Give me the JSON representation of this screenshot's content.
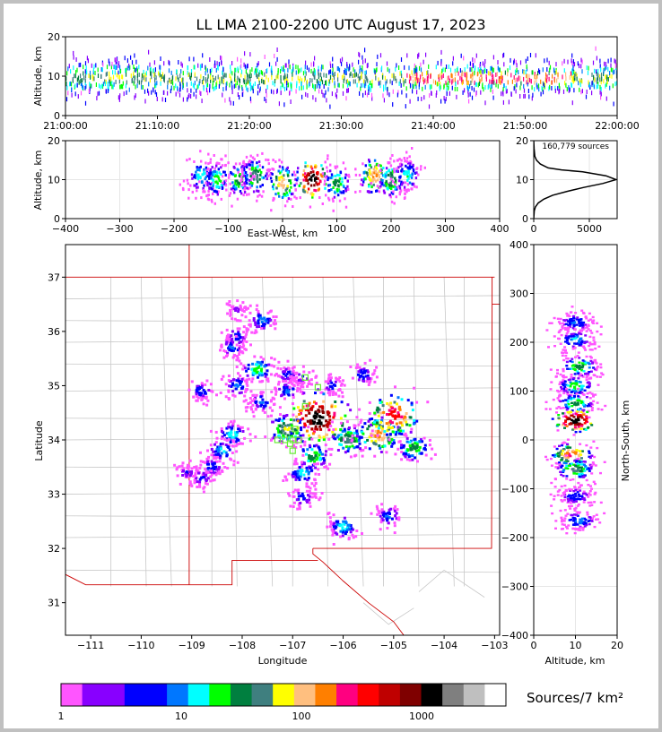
{
  "title": "LL LMA 2100-2200 UTC August 17, 2023",
  "panels": {
    "time_altitude": {
      "ylabel": "Altitude, km",
      "x_ticks": [
        "21:00:00",
        "21:10:00",
        "21:20:00",
        "21:30:00",
        "21:40:00",
        "21:50:00",
        "22:00:00"
      ],
      "y_ticks": [
        "0",
        "10",
        "20"
      ],
      "xlim_minutes": [
        0,
        60
      ],
      "ylim": [
        0,
        20
      ]
    },
    "ew_altitude": {
      "ylabel": "Altitude, km",
      "xlabel": "East-West, km",
      "x_ticks": [
        "−400",
        "−300",
        "−200",
        "−100",
        "0",
        "100",
        "200",
        "300",
        "400"
      ],
      "y_ticks": [
        "0",
        "10",
        "20"
      ],
      "xlim": [
        -400,
        400
      ],
      "ylim": [
        0,
        20
      ]
    },
    "histogram": {
      "annotation": "160,779 sources",
      "x_ticks": [
        "0",
        "5000"
      ],
      "y_ticks": [
        "0",
        "10",
        "20"
      ],
      "xlim": [
        0,
        7500
      ],
      "ylim": [
        0,
        20
      ]
    },
    "plan_view": {
      "xlabel": "Longitude",
      "ylabel": "Latitude",
      "x_ticks": [
        "−111",
        "−110",
        "−109",
        "−108",
        "−107",
        "−106",
        "−105",
        "−104",
        "−103"
      ],
      "y_ticks": [
        "31",
        "32",
        "33",
        "34",
        "35",
        "36",
        "37"
      ],
      "xlim": [
        -111.5,
        -102.9
      ],
      "ylim": [
        30.4,
        37.6
      ]
    },
    "ns_altitude": {
      "ylabel": "North-South, km",
      "xlabel": "Altitude, km",
      "x_ticks": [
        "0",
        "10",
        "20"
      ],
      "y_ticks": [
        "−400",
        "−300",
        "−200",
        "−100",
        "0",
        "100",
        "200",
        "300",
        "400"
      ],
      "xlim": [
        0,
        20
      ],
      "ylim": [
        -400,
        400
      ]
    }
  },
  "colorbar": {
    "label": "Sources/7 km²",
    "tick_labels": [
      "1",
      "10",
      "100",
      "1000"
    ],
    "colors": [
      "#ff55ff",
      "#8800ff",
      "#8800ff",
      "#0000ff",
      "#0000ff",
      "#0077ff",
      "#00ffff",
      "#00ff00",
      "#007f3f",
      "#3f7f7f",
      "#ffff00",
      "#ffbf7f",
      "#ff7f00",
      "#ff0080",
      "#ff0000",
      "#bf0000",
      "#7f0000",
      "#000000",
      "#7f7f7f",
      "#bfbfbf",
      "#ffffff"
    ]
  },
  "chart_data": [
    {
      "type": "heatmap",
      "title": "LL LMA 2100-2200 UTC August 17, 2023",
      "xlabel": "",
      "ylabel": "Altitude, km",
      "x_range": [
        "21:00:00",
        "22:00:00"
      ],
      "ylim": [
        0,
        20
      ],
      "peak_altitude_km": 10
    },
    {
      "type": "heatmap",
      "xlabel": "East-West, km",
      "ylabel": "Altitude, km",
      "xlim": [
        -400,
        400
      ],
      "ylim": [
        0,
        20
      ],
      "cells": [
        {
          "x": -150,
          "y": 11,
          "v": 20
        },
        {
          "x": -120,
          "y": 10,
          "v": 30
        },
        {
          "x": -80,
          "y": 10,
          "v": 40
        },
        {
          "x": -50,
          "y": 11,
          "v": 60
        },
        {
          "x": 0,
          "y": 9,
          "v": 150
        },
        {
          "x": 55,
          "y": 10,
          "v": 2000
        },
        {
          "x": 100,
          "y": 9,
          "v": 40
        },
        {
          "x": 170,
          "y": 11,
          "v": 200
        },
        {
          "x": 200,
          "y": 10,
          "v": 60
        },
        {
          "x": 230,
          "y": 11,
          "v": 20
        }
      ]
    },
    {
      "type": "line",
      "annotation": "160,779 sources",
      "xlim": [
        0,
        7500
      ],
      "ylim": [
        0,
        20
      ],
      "x": [
        0,
        50,
        150,
        400,
        900,
        1700,
        3000,
        4500,
        6200,
        7400,
        6500,
        4400,
        2500,
        1300,
        600,
        250,
        100,
        30,
        0
      ],
      "y": [
        0,
        2,
        3,
        4,
        5,
        6,
        7,
        8,
        9,
        10,
        11,
        12,
        12.5,
        13,
        14,
        15,
        16,
        18,
        20
      ]
    },
    {
      "type": "heatmap",
      "xlabel": "Longitude",
      "ylabel": "Latitude",
      "xlim": [
        -111.5,
        -102.9
      ],
      "ylim": [
        30.4,
        37.6
      ],
      "cells": [
        {
          "x": -108.1,
          "y": 36.4,
          "v": 3
        },
        {
          "x": -107.6,
          "y": 36.2,
          "v": 12
        },
        {
          "x": -108.1,
          "y": 35.9,
          "v": 8
        },
        {
          "x": -108.2,
          "y": 35.7,
          "v": 10
        },
        {
          "x": -107.7,
          "y": 35.3,
          "v": 30
        },
        {
          "x": -108.1,
          "y": 35.0,
          "v": 12
        },
        {
          "x": -108.8,
          "y": 34.9,
          "v": 8
        },
        {
          "x": -107.1,
          "y": 35.2,
          "v": 6
        },
        {
          "x": -107.1,
          "y": 34.9,
          "v": 10
        },
        {
          "x": -106.8,
          "y": 35.15,
          "v": 4
        },
        {
          "x": -106.2,
          "y": 35.0,
          "v": 6
        },
        {
          "x": -105.6,
          "y": 35.2,
          "v": 8
        },
        {
          "x": -108.2,
          "y": 34.1,
          "v": 20
        },
        {
          "x": -108.4,
          "y": 33.8,
          "v": 15
        },
        {
          "x": -108.6,
          "y": 33.5,
          "v": 8
        },
        {
          "x": -108.8,
          "y": 33.3,
          "v": 6
        },
        {
          "x": -107.1,
          "y": 34.2,
          "v": 80
        },
        {
          "x": -106.5,
          "y": 34.4,
          "v": 2000
        },
        {
          "x": -106.6,
          "y": 33.7,
          "v": 40
        },
        {
          "x": -106.8,
          "y": 33.4,
          "v": 20
        },
        {
          "x": -105.9,
          "y": 34.0,
          "v": 60
        },
        {
          "x": -105.3,
          "y": 34.1,
          "v": 200
        },
        {
          "x": -105.0,
          "y": 34.45,
          "v": 500
        },
        {
          "x": -104.6,
          "y": 33.85,
          "v": 40
        },
        {
          "x": -106.8,
          "y": 32.95,
          "v": 8
        },
        {
          "x": -106.0,
          "y": 32.4,
          "v": 20
        },
        {
          "x": -105.1,
          "y": 32.6,
          "v": 10
        },
        {
          "x": -109.1,
          "y": 33.4,
          "v": 4
        },
        {
          "x": -107.6,
          "y": 34.7,
          "v": 10
        }
      ]
    },
    {
      "type": "heatmap",
      "xlabel": "Altitude, km",
      "ylabel": "North-South, km",
      "xlim": [
        0,
        20
      ],
      "ylim": [
        -400,
        400
      ],
      "cells": [
        {
          "x": 10,
          "y": 240,
          "v": 10
        },
        {
          "x": 10,
          "y": 205,
          "v": 15
        },
        {
          "x": 11,
          "y": 150,
          "v": 40
        },
        {
          "x": 10,
          "y": 110,
          "v": 30
        },
        {
          "x": 10,
          "y": 75,
          "v": 40
        },
        {
          "x": 10,
          "y": 40,
          "v": 2000
        },
        {
          "x": 9,
          "y": -30,
          "v": 300
        },
        {
          "x": 10,
          "y": -60,
          "v": 60
        },
        {
          "x": 10,
          "y": -115,
          "v": 8
        },
        {
          "x": 11,
          "y": -165,
          "v": 12
        }
      ]
    }
  ]
}
